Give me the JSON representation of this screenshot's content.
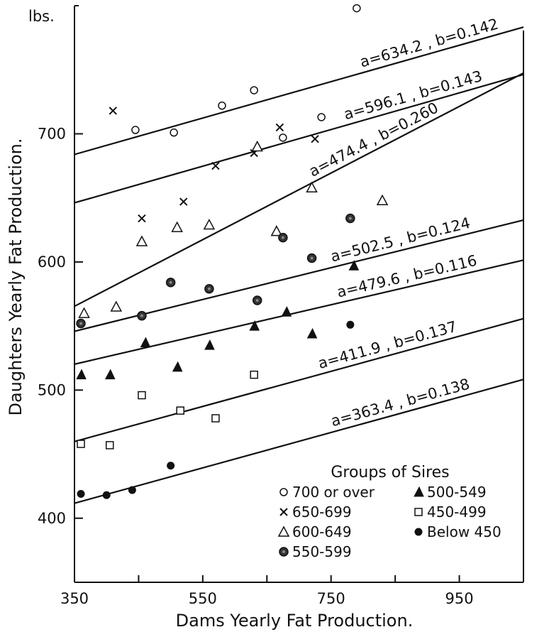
{
  "chart_data": {
    "type": "scatter",
    "y_unit_label": "lbs.",
    "xlabel": "Dams Yearly Fat Production.",
    "ylabel": "Daughters Yearly Fat Production.",
    "xlim": [
      350,
      1050
    ],
    "ylim": [
      350,
      800
    ],
    "x_ticks": [
      350,
      550,
      750,
      950
    ],
    "x_tick_labels": [
      "350",
      "550",
      "750",
      "950"
    ],
    "x_minor_ticks": [
      450,
      650,
      850
    ],
    "y_ticks": [
      400,
      500,
      600,
      700
    ],
    "y_tick_labels": [
      "400",
      "500",
      "600",
      "700"
    ],
    "grid": false,
    "legend_position": "bottom-right",
    "legend_title": "Groups of Sires",
    "regression_lines": [
      {
        "group": "700 or over",
        "a": 634.2,
        "b": 0.142,
        "label": "a=634.2 , b=0.142",
        "x_range": [
          350,
          1050
        ]
      },
      {
        "group": "650-699",
        "a": 596.1,
        "b": 0.143,
        "label": "a=596.1 , b=0.143",
        "x_range": [
          350,
          1050
        ]
      },
      {
        "group": "600-649",
        "a": 474.4,
        "b": 0.26,
        "label": "a=474.4 , b=0.260",
        "x_range": [
          350,
          1050
        ]
      },
      {
        "group": "550-599",
        "a": 502.5,
        "b": 0.124,
        "label": "a=502.5 , b=0.124",
        "x_range": [
          350,
          1050
        ]
      },
      {
        "group": "500-549",
        "a": 479.6,
        "b": 0.116,
        "label": "a=479.6 , b=0.116",
        "x_range": [
          350,
          1050
        ]
      },
      {
        "group": "450-499",
        "a": 411.9,
        "b": 0.137,
        "label": "a=411.9 , b=0.137",
        "x_range": [
          350,
          1050
        ]
      },
      {
        "group": "Below 450",
        "a": 363.4,
        "b": 0.138,
        "label": "a=363.4 , b=0.138",
        "x_range": [
          350,
          1050
        ]
      }
    ],
    "series": [
      {
        "name": "700 or over",
        "marker": "open-circle",
        "x": [
          445,
          505,
          580,
          630,
          675,
          735,
          790
        ],
        "y": [
          703,
          701,
          722,
          734,
          697,
          713,
          798
        ]
      },
      {
        "name": "650-699",
        "marker": "cross",
        "x": [
          410,
          455,
          520,
          570,
          630,
          670,
          725
        ],
        "y": [
          718,
          634,
          647,
          675,
          685,
          705,
          696
        ]
      },
      {
        "name": "600-649",
        "marker": "open-triangle",
        "x": [
          365,
          415,
          455,
          510,
          560,
          635,
          665,
          720,
          830
        ],
        "y": [
          560,
          565,
          616,
          627,
          629,
          690,
          624,
          658,
          648
        ]
      },
      {
        "name": "550-599",
        "marker": "dotted-circle",
        "x": [
          360,
          455,
          500,
          560,
          635,
          675,
          720,
          780
        ],
        "y": [
          552,
          558,
          584,
          579,
          570,
          619,
          603,
          634
        ]
      },
      {
        "name": "500-549",
        "marker": "filled-triangle",
        "x": [
          360,
          405,
          460,
          510,
          560,
          630,
          680,
          720,
          785
        ],
        "y": [
          512,
          512,
          537,
          518,
          535,
          550,
          561,
          544,
          597
        ]
      },
      {
        "name": "450-499",
        "marker": "open-square",
        "x": [
          360,
          405,
          455,
          515,
          570,
          630
        ],
        "y": [
          458,
          457,
          496,
          484,
          478,
          512
        ]
      },
      {
        "name": "Below 450",
        "marker": "filled-circle",
        "x": [
          360,
          400,
          440,
          500,
          780
        ],
        "y": [
          419,
          418,
          422,
          441,
          551
        ]
      }
    ]
  }
}
